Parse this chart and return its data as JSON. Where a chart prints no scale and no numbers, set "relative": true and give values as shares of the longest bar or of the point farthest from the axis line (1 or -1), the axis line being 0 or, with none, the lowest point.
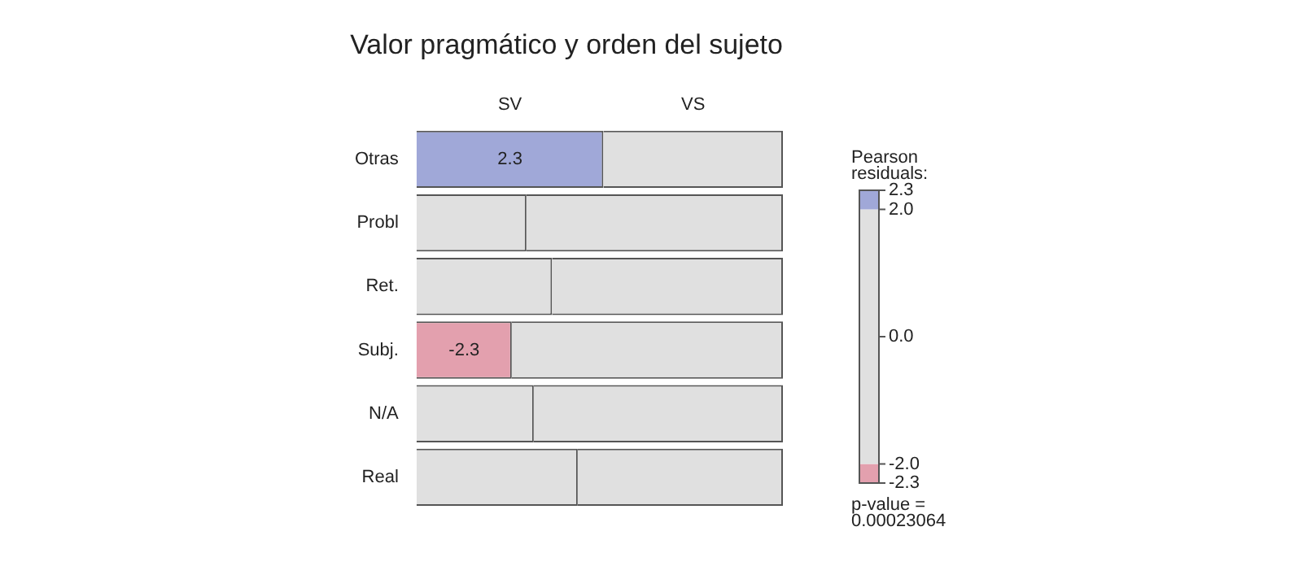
{
  "chart_data": {
    "type": "bar",
    "orientation": "horizontal",
    "stacked": true,
    "relative": true,
    "title": "Valor pragmático y orden del sujeto",
    "categories": [
      "Otras",
      "Probl",
      "Ret.",
      "Subj.",
      "N/A",
      "Real"
    ],
    "series": [
      {
        "name": "SV",
        "colors": [
          "#a0a8d8",
          "#e0e0e0",
          "#e0e0e0",
          "#e3a0ae",
          "#e0e0e0",
          "#e0e0e0"
        ],
        "values": [
          0.51,
          0.3,
          0.37,
          0.26,
          0.32,
          0.44
        ]
      },
      {
        "name": "VS",
        "colors": [
          "#e0e0e0",
          "#e0e0e0",
          "#e0e0e0",
          "#e0e0e0",
          "#e0e0e0",
          "#e0e0e0"
        ],
        "values": [
          0.49,
          0.7,
          0.63,
          0.74,
          0.68,
          0.56
        ]
      }
    ],
    "annotations": [
      {
        "text": "2.3",
        "x": 0.255,
        "y": "Otras"
      },
      {
        "text": "-2.3",
        "x": 0.13,
        "y": "Subj."
      },
      "p-value =\n0.00023064"
    ],
    "clabel": "Pearson\nresiduals:",
    "clim": [
      -2.3,
      2.3
    ],
    "cticks": [
      2.3,
      {
        "value": 2,
        "label": "2.0"
      },
      {
        "value": 0,
        "label": "0.0"
      },
      {
        "value": -2,
        "label": "-2.0"
      },
      -2.3
    ],
    "legend": false,
    "grid": false
  }
}
